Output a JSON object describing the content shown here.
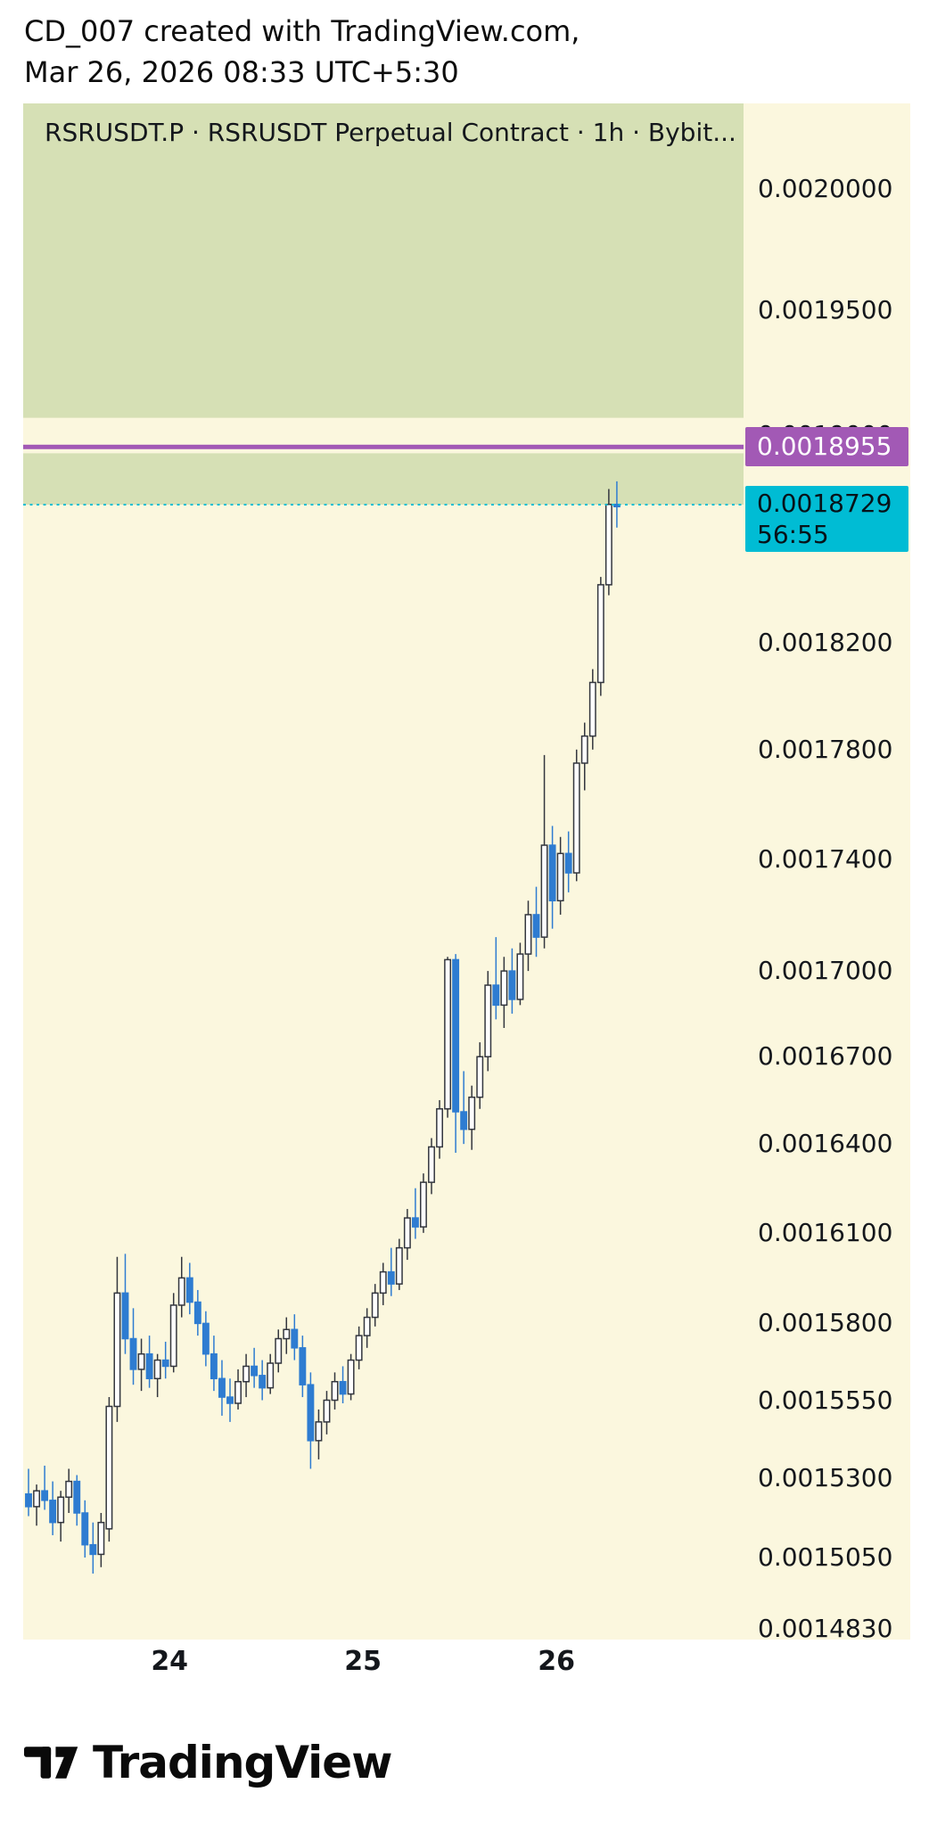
{
  "header": {
    "line1": "CD_007 created with TradingView.com,",
    "line2": "Mar 26, 2026 08:33 UTC+5:30"
  },
  "footer": {
    "brand": "TradingView",
    "logo_icon": "tradingview-mark"
  },
  "chart_data": {
    "type": "candlestick",
    "title": "RSRUSDT.P · RSRUSDT Perpetual Contract · 1h · Bybit...",
    "symbol": "RSRUSDT.P",
    "description": "RSRUSDT Perpetual Contract",
    "interval": "1h",
    "exchange": "Bybit",
    "colors": {
      "background": "#fbf7de",
      "up_fill": "#ffffff",
      "up_border": "#33363e",
      "down": "#2e7cd1",
      "zone_green": "#d6e0b5",
      "alert_purple": "#a259b5",
      "last_cyan": "#00bcd4"
    },
    "x_axis": {
      "tick_labels": [
        "24",
        "25",
        "26"
      ],
      "tick_indices": [
        17.5,
        41.5,
        65.5
      ]
    },
    "y_axis": {
      "scale": "log",
      "decimals": 7,
      "ticks": [
        0.002,
        0.00195,
        0.0019,
        0.00182,
        0.00178,
        0.00174,
        0.0017,
        0.00167,
        0.00164,
        0.00161,
        0.00158,
        0.001555,
        0.00153,
        0.001505,
        0.001483
      ]
    },
    "zones": [
      {
        "name": "supply-zone-upper",
        "top": 0.002045,
        "bottom": 0.001907
      },
      {
        "name": "supply-zone-lower",
        "top": 0.001893,
        "bottom": 0.0018729
      }
    ],
    "price_lines": {
      "alert": {
        "price": 0.0018955,
        "label": "0.0018955"
      },
      "last": {
        "price": 0.0018729,
        "label": "0.0018729",
        "countdown": "56:55"
      }
    },
    "candles": [
      [
        0.001525,
        0.001533,
        0.001518,
        0.001521
      ],
      [
        0.001521,
        0.001528,
        0.001515,
        0.001526
      ],
      [
        0.001526,
        0.001534,
        0.00152,
        0.001523
      ],
      [
        0.001523,
        0.001529,
        0.001512,
        0.001516
      ],
      [
        0.001516,
        0.001526,
        0.00151,
        0.001524
      ],
      [
        0.001524,
        0.001533,
        0.001519,
        0.001529
      ],
      [
        0.001529,
        0.001531,
        0.001515,
        0.001519
      ],
      [
        0.001519,
        0.001523,
        0.001505,
        0.001509
      ],
      [
        0.001509,
        0.001516,
        0.0015,
        0.001506
      ],
      [
        0.001506,
        0.001519,
        0.001502,
        0.001516
      ],
      [
        0.001514,
        0.001556,
        0.00151,
        0.001553
      ],
      [
        0.001553,
        0.001602,
        0.001548,
        0.00159
      ],
      [
        0.00159,
        0.001603,
        0.00157,
        0.001575
      ],
      [
        0.001575,
        0.001585,
        0.00156,
        0.001565
      ],
      [
        0.001565,
        0.001575,
        0.001558,
        0.00157
      ],
      [
        0.00157,
        0.001576,
        0.001559,
        0.001562
      ],
      [
        0.001562,
        0.00157,
        0.001556,
        0.001568
      ],
      [
        0.001568,
        0.001574,
        0.001562,
        0.001566
      ],
      [
        0.001566,
        0.00159,
        0.001564,
        0.001586
      ],
      [
        0.001586,
        0.001602,
        0.001582,
        0.001595
      ],
      [
        0.001595,
        0.0016,
        0.001583,
        0.001587
      ],
      [
        0.001587,
        0.001591,
        0.001576,
        0.00158
      ],
      [
        0.00158,
        0.001584,
        0.001566,
        0.00157
      ],
      [
        0.00157,
        0.001576,
        0.001558,
        0.001562
      ],
      [
        0.001562,
        0.001568,
        0.00155,
        0.001556
      ],
      [
        0.001556,
        0.001562,
        0.001548,
        0.001554
      ],
      [
        0.001554,
        0.001565,
        0.001552,
        0.001561
      ],
      [
        0.001561,
        0.00157,
        0.001556,
        0.001566
      ],
      [
        0.001566,
        0.001572,
        0.001559,
        0.001563
      ],
      [
        0.001563,
        0.001568,
        0.001555,
        0.001559
      ],
      [
        0.001559,
        0.00157,
        0.001557,
        0.001567
      ],
      [
        0.001567,
        0.001578,
        0.001564,
        0.001575
      ],
      [
        0.001575,
        0.001582,
        0.00157,
        0.001578
      ],
      [
        0.001578,
        0.001583,
        0.001568,
        0.001572
      ],
      [
        0.001572,
        0.001576,
        0.001556,
        0.00156
      ],
      [
        0.00156,
        0.001564,
        0.001533,
        0.001542
      ],
      [
        0.001542,
        0.001552,
        0.001536,
        0.001548
      ],
      [
        0.001548,
        0.001558,
        0.001544,
        0.001555
      ],
      [
        0.001555,
        0.001564,
        0.001552,
        0.001561
      ],
      [
        0.001561,
        0.001566,
        0.001554,
        0.001557
      ],
      [
        0.001557,
        0.00157,
        0.001555,
        0.001568
      ],
      [
        0.001568,
        0.001579,
        0.001565,
        0.001576
      ],
      [
        0.001576,
        0.001585,
        0.001572,
        0.001582
      ],
      [
        0.001582,
        0.001593,
        0.001579,
        0.00159
      ],
      [
        0.00159,
        0.0016,
        0.001586,
        0.001597
      ],
      [
        0.001597,
        0.001605,
        0.001589,
        0.001593
      ],
      [
        0.001593,
        0.001608,
        0.001591,
        0.001605
      ],
      [
        0.001605,
        0.001618,
        0.001601,
        0.001615
      ],
      [
        0.001615,
        0.001625,
        0.001608,
        0.001612
      ],
      [
        0.001612,
        0.00163,
        0.00161,
        0.001627
      ],
      [
        0.001627,
        0.001642,
        0.001623,
        0.001639
      ],
      [
        0.001639,
        0.001655,
        0.001635,
        0.001652
      ],
      [
        0.001652,
        0.001705,
        0.001649,
        0.001704
      ],
      [
        0.001704,
        0.001706,
        0.001637,
        0.001651
      ],
      [
        0.001651,
        0.001665,
        0.00164,
        0.001645
      ],
      [
        0.001645,
        0.00166,
        0.001638,
        0.001656
      ],
      [
        0.001656,
        0.001675,
        0.001652,
        0.00167
      ],
      [
        0.00167,
        0.0017,
        0.001665,
        0.001695
      ],
      [
        0.001695,
        0.001712,
        0.001683,
        0.001688
      ],
      [
        0.001688,
        0.001705,
        0.00168,
        0.0017
      ],
      [
        0.0017,
        0.001708,
        0.001685,
        0.00169
      ],
      [
        0.00169,
        0.00171,
        0.001688,
        0.001706
      ],
      [
        0.001706,
        0.001725,
        0.0017,
        0.00172
      ],
      [
        0.00172,
        0.00173,
        0.001705,
        0.001712
      ],
      [
        0.001712,
        0.001778,
        0.001708,
        0.001745
      ],
      [
        0.001745,
        0.001752,
        0.001715,
        0.001725
      ],
      [
        0.001725,
        0.001748,
        0.00172,
        0.001742
      ],
      [
        0.001742,
        0.00175,
        0.001728,
        0.001735
      ],
      [
        0.001735,
        0.00178,
        0.001732,
        0.001775
      ],
      [
        0.001775,
        0.00179,
        0.001765,
        0.001785
      ],
      [
        0.001785,
        0.00181,
        0.00178,
        0.001805
      ],
      [
        0.001805,
        0.001845,
        0.0018,
        0.001842
      ],
      [
        0.001842,
        0.001879,
        0.001838,
        0.001873
      ],
      [
        0.001873,
        0.001882,
        0.001864,
        0.0018729
      ]
    ]
  }
}
